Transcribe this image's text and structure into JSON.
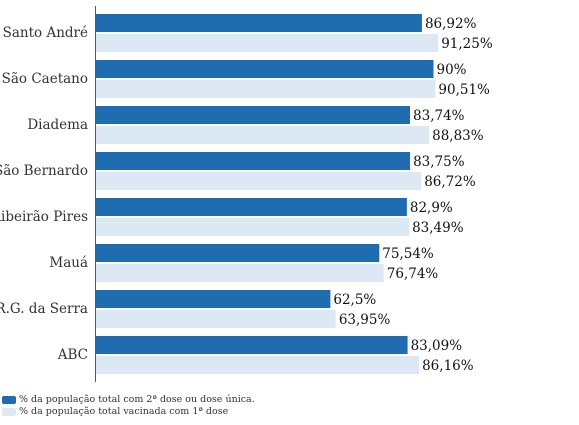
{
  "chart_data": {
    "type": "bar",
    "orientation": "horizontal",
    "categories": [
      "Santo André",
      "São Caetano",
      "Diadema",
      "São Bernardo",
      "Ribeirão Pires",
      "Mauá",
      "R.G. da Serra",
      "ABC"
    ],
    "series": [
      {
        "name": "% da população total com 2ª dose ou dose única.",
        "values": [
          86.92,
          90,
          83.74,
          83.75,
          82.9,
          75.54,
          62.5,
          83.09
        ],
        "labels": [
          "86,92%",
          "90%",
          "83,74%",
          "83,75%",
          "82,9%",
          "75,54%",
          "62,5%",
          "83,09%"
        ],
        "color": "#1f6db0"
      },
      {
        "name": "% da população total vacinada com 1ª dose",
        "values": [
          91.25,
          90.51,
          88.83,
          86.72,
          83.49,
          76.74,
          63.95,
          86.16
        ],
        "labels": [
          "91,25%",
          "90,51%",
          "88,83%",
          "86,72%",
          "83,49%",
          "76,74%",
          "63,95%",
          "86,16%"
        ],
        "color": "#dce9f5"
      }
    ],
    "xlim": [
      0,
      100
    ],
    "grid": false,
    "legend_position": "bottom-left"
  }
}
